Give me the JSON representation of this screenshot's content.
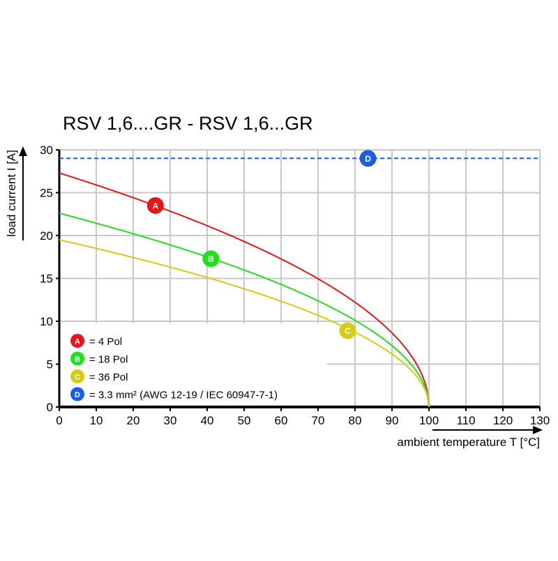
{
  "chart_data": {
    "type": "line",
    "title": "RSV 1,6....GR - RSV 1,6...GR",
    "xlabel": "ambient temperature T [°C]",
    "ylabel": "load current I [A]",
    "xlim": [
      0,
      130
    ],
    "ylim": [
      0,
      30
    ],
    "xticks": [
      0,
      10,
      20,
      30,
      40,
      50,
      60,
      70,
      80,
      90,
      100,
      110,
      120,
      130
    ],
    "yticks": [
      0,
      5,
      10,
      15,
      20,
      25,
      30
    ],
    "grid": true,
    "legend_placement": "bottom-left",
    "x": [
      0,
      10,
      20,
      30,
      40,
      50,
      60,
      70,
      80,
      90,
      95,
      98,
      100
    ],
    "series": [
      {
        "name": "A",
        "label": "= 4 Pol",
        "color": "#e8161b",
        "values": [
          27.3,
          25.9,
          24.4,
          22.8,
          21.1,
          19.3,
          17.3,
          15.0,
          12.2,
          8.6,
          6.1,
          3.9,
          0
        ],
        "marker": {
          "x": 26,
          "y": 23.5
        }
      },
      {
        "name": "B",
        "label": "= 18 Pol",
        "color": "#22e01e",
        "values": [
          22.6,
          21.4,
          20.2,
          18.9,
          17.5,
          16.0,
          14.3,
          12.4,
          10.1,
          7.1,
          5.1,
          3.2,
          0
        ],
        "marker": {
          "x": 41,
          "y": 17.3
        }
      },
      {
        "name": "C",
        "label": "= 36 Pol",
        "color": "#d4cc10",
        "values": [
          19.5,
          18.5,
          17.4,
          16.3,
          15.1,
          13.8,
          12.3,
          10.7,
          8.7,
          6.2,
          4.4,
          2.8,
          0
        ],
        "marker": {
          "x": 78,
          "y": 8.9
        }
      },
      {
        "name": "D",
        "label": "= 3.3 mm² (AWG 12-19 / IEC 60947-7-1)",
        "color": "#1a5ee8",
        "constant": 29,
        "dashed": true,
        "marker": {
          "x": 83.5,
          "y": 29
        }
      }
    ]
  }
}
